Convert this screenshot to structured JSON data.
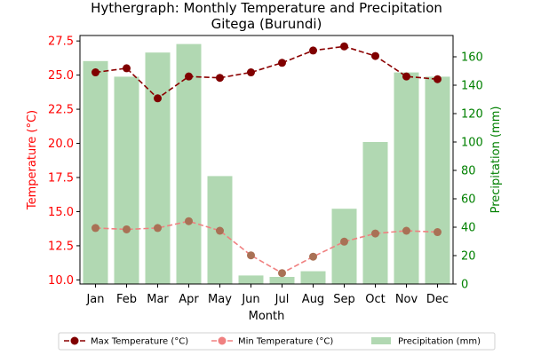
{
  "chart_data": {
    "type": "bar+line",
    "title": "Hythergraph: Monthly Temperature and Precipitation",
    "subtitle": "Gitega (Burundi)",
    "xlabel": "Month",
    "ylabel_left": "Temperature (°C)",
    "ylabel_right": "Precipitation (mm)",
    "categories": [
      "Jan",
      "Feb",
      "Mar",
      "Apr",
      "May",
      "Jun",
      "Jul",
      "Aug",
      "Sep",
      "Oct",
      "Nov",
      "Dec"
    ],
    "ylim_left": [
      9.7,
      27.9
    ],
    "yticks_left": [
      "10.0",
      "12.5",
      "15.0",
      "17.5",
      "20.0",
      "22.5",
      "25.0",
      "27.5"
    ],
    "ylim_right": [
      0,
      175
    ],
    "yticks_right": [
      "0",
      "20",
      "40",
      "60",
      "80",
      "100",
      "120",
      "140",
      "160"
    ],
    "series": [
      {
        "name": "Max Temperature (°C)",
        "kind": "line",
        "axis": "left",
        "color": "#8b0000",
        "linestyle": "dashed",
        "values": [
          25.2,
          25.5,
          23.3,
          24.9,
          24.8,
          25.2,
          25.9,
          26.8,
          27.1,
          26.4,
          24.9,
          24.7
        ]
      },
      {
        "name": "Min Temperature (°C)",
        "kind": "line",
        "axis": "left",
        "color": "#f08080",
        "linestyle": "dashed",
        "values": [
          13.8,
          13.7,
          13.8,
          14.3,
          13.6,
          11.8,
          10.5,
          11.7,
          12.8,
          13.4,
          13.6,
          13.5
        ]
      },
      {
        "name": "Precipitation (mm)",
        "kind": "bar",
        "axis": "right",
        "color": "#b1d8b2",
        "values": [
          157,
          146,
          163,
          169,
          76,
          6,
          5,
          9,
          53,
          100,
          149,
          146
        ]
      }
    ],
    "left_axis_color": "#ff0000",
    "right_axis_color": "#008000",
    "legend_position": "bottom",
    "grid": false
  }
}
